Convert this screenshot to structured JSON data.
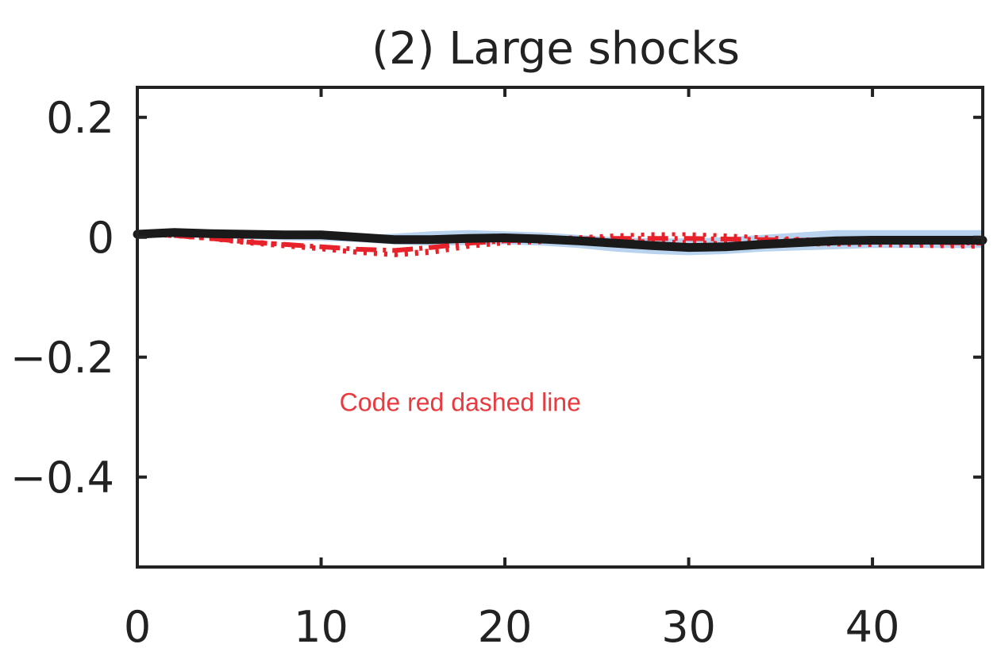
{
  "chart_data": {
    "type": "line",
    "title": "(2) Large shocks",
    "xlim": [
      0,
      46
    ],
    "ylim": [
      -0.55,
      0.25
    ],
    "xticks": [
      0,
      10,
      20,
      30,
      40
    ],
    "xtick_labels": [
      "0",
      "10",
      "20",
      "30",
      "40"
    ],
    "yticks": [
      0.2,
      0,
      -0.2,
      -0.4
    ],
    "ytick_labels": [
      "0.2",
      "0",
      "−0.2",
      "−0.4"
    ],
    "grid": false,
    "legend": "none",
    "band": {
      "color": "#b9d3ee",
      "x": [
        0,
        2,
        4,
        6,
        8,
        10,
        12,
        14,
        16,
        18,
        20,
        22,
        24,
        26,
        28,
        30,
        32,
        34,
        36,
        38,
        40,
        42,
        44,
        46
      ],
      "upper": [
        0.01,
        0.01,
        0.008,
        0.006,
        0.005,
        0.004,
        0.003,
        0.006,
        0.01,
        0.012,
        0.01,
        0.008,
        0.004,
        0.0,
        -0.002,
        -0.002,
        0.0,
        0.004,
        0.008,
        0.012,
        0.012,
        0.012,
        0.012,
        0.012
      ],
      "lower": [
        0.0,
        0.0,
        -0.001,
        -0.003,
        -0.005,
        -0.006,
        -0.008,
        -0.012,
        -0.014,
        -0.013,
        -0.012,
        -0.014,
        -0.018,
        -0.024,
        -0.028,
        -0.03,
        -0.028,
        -0.024,
        -0.022,
        -0.02,
        -0.018,
        -0.018,
        -0.018,
        -0.018
      ]
    },
    "series": [
      {
        "color": "#1a1a1a",
        "style": "solid",
        "x": [
          0,
          2,
          4,
          6,
          8,
          10,
          12,
          14,
          16,
          18,
          20,
          22,
          24,
          26,
          28,
          30,
          32,
          34,
          36,
          38,
          40,
          42,
          44,
          46
        ],
        "values": [
          0.005,
          0.008,
          0.006,
          0.005,
          0.004,
          0.004,
          0.0,
          -0.004,
          -0.004,
          -0.002,
          -0.001,
          -0.003,
          -0.006,
          -0.01,
          -0.014,
          -0.017,
          -0.016,
          -0.012,
          -0.009,
          -0.006,
          -0.005,
          -0.005,
          -0.005,
          -0.005
        ]
      },
      {
        "color": "#e8222a",
        "style": "dashdot",
        "x": [
          0,
          2,
          4,
          6,
          8,
          10,
          12,
          14,
          16,
          18,
          20,
          22,
          24,
          26,
          28,
          30,
          32,
          34,
          36,
          38,
          40,
          42,
          44,
          46
        ],
        "values": [
          0.005,
          0.003,
          -0.002,
          -0.008,
          -0.012,
          -0.016,
          -0.02,
          -0.022,
          -0.017,
          -0.01,
          -0.006,
          -0.004,
          -0.003,
          -0.002,
          -0.002,
          -0.002,
          -0.003,
          -0.004,
          -0.005,
          -0.006,
          -0.007,
          -0.008,
          -0.009,
          -0.01
        ]
      },
      {
        "color": "#e8222a",
        "style": "dotted",
        "x": [
          0,
          2,
          4,
          6,
          8,
          10,
          12,
          14,
          16,
          18,
          20,
          22,
          24,
          26,
          28,
          30,
          32,
          34,
          36,
          38,
          40,
          42,
          44,
          46
        ],
        "values": [
          0.006,
          0.005,
          0.0,
          -0.006,
          -0.012,
          -0.018,
          -0.024,
          -0.028,
          -0.022,
          -0.012,
          -0.005,
          -0.002,
          0.0,
          0.003,
          0.005,
          0.005,
          0.003,
          0.0,
          -0.003,
          -0.006,
          -0.008,
          -0.01,
          -0.012,
          -0.014
        ]
      },
      {
        "color": "#e8222a",
        "style": "dotted",
        "x": [
          0,
          2,
          4,
          6,
          8,
          10,
          12,
          14,
          16,
          18,
          20,
          22,
          24,
          26,
          28,
          30,
          32,
          34,
          36,
          38,
          40,
          42,
          44,
          46
        ],
        "values": [
          0.004,
          0.002,
          -0.003,
          -0.01,
          -0.015,
          -0.02,
          -0.026,
          -0.03,
          -0.026,
          -0.016,
          -0.01,
          -0.008,
          -0.006,
          -0.006,
          -0.007,
          -0.008,
          -0.01,
          -0.012,
          -0.012,
          -0.012,
          -0.013,
          -0.014,
          -0.015,
          -0.016
        ]
      }
    ],
    "annotation": {
      "text": "Code red dashed line",
      "color": "#e83a3f",
      "x": 11,
      "y": -0.29
    }
  }
}
